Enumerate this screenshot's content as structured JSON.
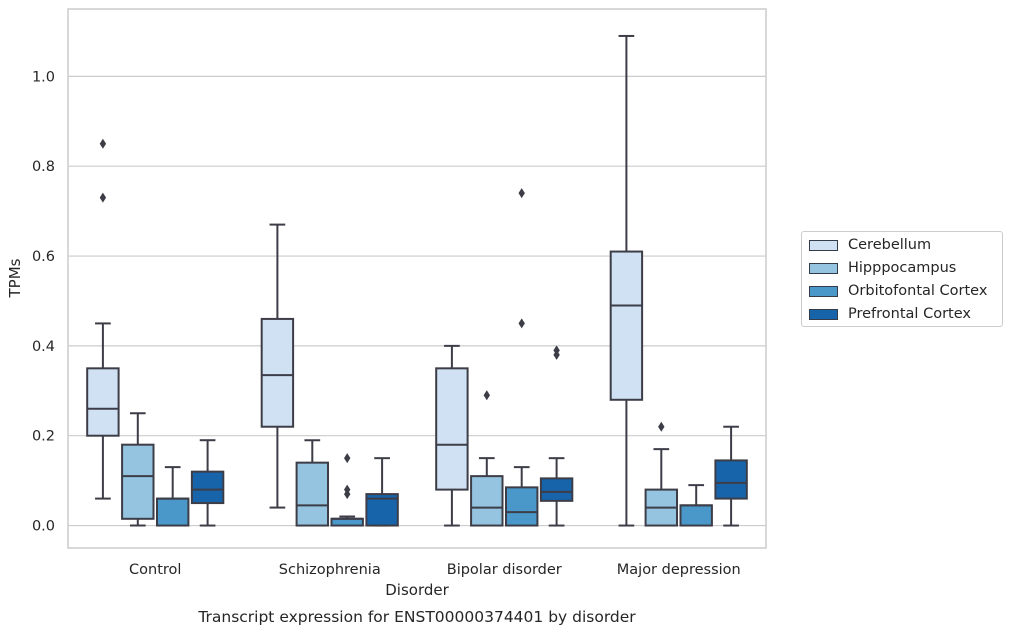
{
  "chart_data": {
    "type": "box",
    "caption": "Transcript expression for ENST00000374401 by disorder",
    "xlabel": "Disorder",
    "ylabel": "TPMs",
    "ylim": [
      -0.05,
      1.15
    ],
    "yticks": [
      0.0,
      0.2,
      0.4,
      0.6,
      0.8,
      1.0
    ],
    "ytick_labels": [
      "0.0",
      "0.2",
      "0.4",
      "0.6",
      "0.8",
      "1.0"
    ],
    "grid": true,
    "legend_position": "right",
    "categories": [
      "Control",
      "Schizophrenia",
      "Bipolar disorder",
      "Major depression"
    ],
    "series": [
      {
        "name": "Cerebellum",
        "color": "#cfe1f2",
        "boxes": [
          {
            "whisker_low": 0.06,
            "q1": 0.2,
            "median": 0.26,
            "q3": 0.35,
            "whisker_high": 0.45,
            "outliers": [
              0.73,
              0.85
            ]
          },
          {
            "whisker_low": 0.04,
            "q1": 0.22,
            "median": 0.335,
            "q3": 0.46,
            "whisker_high": 0.67,
            "outliers": []
          },
          {
            "whisker_low": 0.0,
            "q1": 0.08,
            "median": 0.18,
            "q3": 0.35,
            "whisker_high": 0.4,
            "outliers": []
          },
          {
            "whisker_low": 0.0,
            "q1": 0.28,
            "median": 0.49,
            "q3": 0.61,
            "whisker_high": 1.09,
            "outliers": []
          }
        ]
      },
      {
        "name": "Hipppocampus",
        "color": "#94c4df",
        "boxes": [
          {
            "whisker_low": 0.0,
            "q1": 0.015,
            "median": 0.11,
            "q3": 0.18,
            "whisker_high": 0.25,
            "outliers": []
          },
          {
            "whisker_low": 0.0,
            "q1": 0.0,
            "median": 0.045,
            "q3": 0.14,
            "whisker_high": 0.19,
            "outliers": []
          },
          {
            "whisker_low": 0.0,
            "q1": 0.0,
            "median": 0.04,
            "q3": 0.11,
            "whisker_high": 0.15,
            "outliers": [
              0.29
            ]
          },
          {
            "whisker_low": 0.0,
            "q1": 0.0,
            "median": 0.04,
            "q3": 0.08,
            "whisker_high": 0.17,
            "outliers": [
              0.22
            ]
          }
        ]
      },
      {
        "name": "Orbitofontal Cortex",
        "color": "#4a98c9",
        "boxes": [
          {
            "whisker_low": 0.0,
            "q1": 0.0,
            "median": 0.06,
            "q3": 0.06,
            "whisker_high": 0.13,
            "outliers": []
          },
          {
            "whisker_low": 0.0,
            "q1": 0.0,
            "median": 0.015,
            "q3": 0.015,
            "whisker_high": 0.02,
            "outliers": [
              0.07,
              0.08,
              0.15
            ]
          },
          {
            "whisker_low": 0.0,
            "q1": 0.0,
            "median": 0.03,
            "q3": 0.085,
            "whisker_high": 0.13,
            "outliers": [
              0.45,
              0.74
            ]
          },
          {
            "whisker_low": 0.0,
            "q1": 0.0,
            "median": 0.045,
            "q3": 0.045,
            "whisker_high": 0.09,
            "outliers": []
          }
        ]
      },
      {
        "name": "Prefrontal Cortex",
        "color": "#1764ab",
        "boxes": [
          {
            "whisker_low": 0.0,
            "q1": 0.05,
            "median": 0.08,
            "q3": 0.12,
            "whisker_high": 0.19,
            "outliers": []
          },
          {
            "whisker_low": 0.0,
            "q1": 0.0,
            "median": 0.06,
            "q3": 0.07,
            "whisker_high": 0.15,
            "outliers": []
          },
          {
            "whisker_low": 0.0,
            "q1": 0.055,
            "median": 0.075,
            "q3": 0.105,
            "whisker_high": 0.15,
            "outliers": [
              0.38,
              0.39
            ]
          },
          {
            "whisker_low": 0.0,
            "q1": 0.06,
            "median": 0.095,
            "q3": 0.145,
            "whisker_high": 0.22,
            "outliers": []
          }
        ]
      }
    ]
  }
}
